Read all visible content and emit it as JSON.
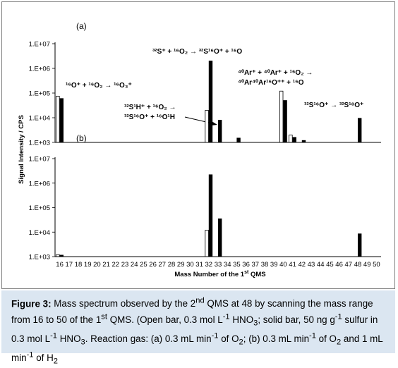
{
  "figure": {
    "caption_label": "Figure 3:",
    "caption_text": "Mass spectrum observed by the 2nd QMS at 48 by scanning the mass range from 16 to 50 of the 1st QMS. (Open bar, 0.3 mol L-1 HNO3; solid bar, 50 ng g-1 sulfur in 0.3 mol L-1 HNO3. Reaction gas: (a) 0.3 mL min-1 of O2; (b) 0.3 mL min-1 of O2 and 1 mL min-1 of H2"
  },
  "chart_data": [
    {
      "type": "bar",
      "panel_label": "(a)",
      "yscale": "log",
      "ylim": [
        1000,
        10000000
      ],
      "ytick_labels": [
        "1.E+03",
        "1.E+04",
        "1.E+05",
        "1.E+06",
        "1.E+07"
      ],
      "x_categories": [
        16,
        17,
        18,
        19,
        20,
        21,
        22,
        23,
        24,
        25,
        26,
        27,
        28,
        29,
        30,
        31,
        32,
        33,
        34,
        35,
        36,
        37,
        38,
        39,
        40,
        41,
        42,
        43,
        44,
        45,
        46,
        47,
        48,
        49,
        50
      ],
      "series": [
        {
          "style": "open",
          "points": [
            {
              "x": 16,
              "y": 75000
            },
            {
              "x": 32,
              "y": 20000
            },
            {
              "x": 40,
              "y": 120000
            },
            {
              "x": 41,
              "y": 2000
            }
          ]
        },
        {
          "style": "solid",
          "points": [
            {
              "x": 16,
              "y": 60000
            },
            {
              "x": 32,
              "y": 2000000
            },
            {
              "x": 33,
              "y": 8000
            },
            {
              "x": 35,
              "y": 1500
            },
            {
              "x": 40,
              "y": 50000
            },
            {
              "x": 41,
              "y": 1600
            },
            {
              "x": 42,
              "y": 1200
            },
            {
              "x": 48,
              "y": 9500
            }
          ]
        }
      ],
      "annotations": [
        {
          "id": "o3",
          "text": "16O+ + 16O2 → 16O3+"
        },
        {
          "id": "so",
          "text": "32S+ + 16O2 → 32S16O+ + 16O"
        },
        {
          "id": "ar1",
          "text": "40Ar+ + 40Ar+ + 16O2 →"
        },
        {
          "id": "ar2",
          "text": "40Ar40Ar16O++ + 16O"
        },
        {
          "id": "sh1",
          "text": "32S1H+ + 16O2 →"
        },
        {
          "id": "sh2",
          "text": "32S16O+ + 16O1H"
        },
        {
          "id": "s18",
          "text": "32S16O+ → 32S18O+"
        }
      ]
    },
    {
      "type": "bar",
      "panel_label": "(b)",
      "yscale": "log",
      "ylim": [
        1000,
        10000000
      ],
      "ytick_labels": [
        "1.E+03",
        "1.E+04",
        "1.E+05",
        "1.E+06",
        "1.E+07"
      ],
      "xlabel": "Mass Number of the 1st QMS",
      "ylabel": "Signal Intensity / CPS",
      "x_categories": [
        16,
        17,
        18,
        19,
        20,
        21,
        22,
        23,
        24,
        25,
        26,
        27,
        28,
        29,
        30,
        31,
        32,
        33,
        34,
        35,
        36,
        37,
        38,
        39,
        40,
        41,
        42,
        43,
        44,
        45,
        46,
        47,
        48,
        49,
        50
      ],
      "series": [
        {
          "style": "open",
          "points": [
            {
              "x": 16,
              "y": 1200
            },
            {
              "x": 32,
              "y": 12000
            }
          ]
        },
        {
          "style": "solid",
          "points": [
            {
              "x": 16,
              "y": 1150
            },
            {
              "x": 32,
              "y": 2200000
            },
            {
              "x": 33,
              "y": 35000
            },
            {
              "x": 48,
              "y": 8500
            }
          ]
        }
      ]
    }
  ]
}
